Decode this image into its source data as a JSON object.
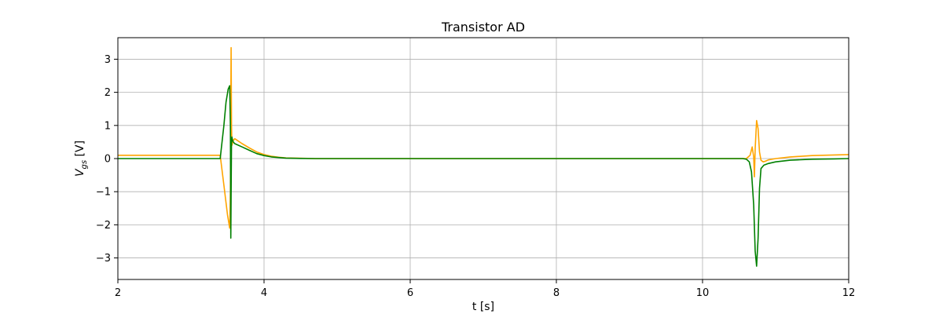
{
  "chart_data": {
    "type": "line",
    "title": "Transistor AD",
    "xlabel": "t [s]",
    "ylabel_main": "V",
    "ylabel_sub": "gs",
    "ylabel_unit": " [V]",
    "xlim": [
      2,
      12
    ],
    "ylim": [
      -3.65,
      3.65
    ],
    "grid": true,
    "x_ticks": [
      2,
      4,
      6,
      8,
      10,
      12
    ],
    "y_ticks": [
      -3,
      -2,
      -1,
      0,
      1,
      2,
      3
    ],
    "x_tick_labels": [
      "2",
      "4",
      "6",
      "8",
      "10",
      "12"
    ],
    "y_tick_labels": [
      "−3",
      "−2",
      "−1",
      "0",
      "1",
      "2",
      "3"
    ],
    "colors": {
      "series1": "#FFA500",
      "series2": "#008000",
      "grid": "#b0b0b0",
      "axis": "#000000"
    },
    "series": [
      {
        "color": "#FFA500",
        "x": [
          2.0,
          3.0,
          3.4,
          3.45,
          3.5,
          3.53,
          3.54,
          3.545,
          3.55,
          3.555,
          3.56,
          3.58,
          3.6,
          3.7,
          3.8,
          3.9,
          4.0,
          4.1,
          4.2,
          4.3,
          4.5,
          4.7,
          5.0,
          6.0,
          8.0,
          10.0,
          10.6,
          10.65,
          10.68,
          10.7,
          10.71,
          10.72,
          10.74,
          10.76,
          10.78,
          10.8,
          10.83,
          10.86,
          10.9,
          11.0,
          11.2,
          11.5,
          11.8,
          12.0
        ],
        "y": [
          0.1,
          0.1,
          0.1,
          -0.8,
          -1.7,
          -2.1,
          -1.0,
          1.5,
          3.35,
          1.0,
          0.4,
          0.55,
          0.6,
          0.45,
          0.32,
          0.2,
          0.12,
          0.07,
          0.04,
          0.02,
          0.01,
          0.0,
          0.0,
          0.0,
          0.0,
          0.0,
          0.0,
          0.1,
          0.35,
          0.05,
          -0.55,
          0.3,
          1.15,
          0.9,
          0.2,
          -0.05,
          -0.1,
          -0.08,
          -0.04,
          0.0,
          0.05,
          0.09,
          0.11,
          0.12
        ]
      },
      {
        "color": "#008000",
        "x": [
          2.0,
          3.0,
          3.4,
          3.45,
          3.48,
          3.51,
          3.53,
          3.54,
          3.545,
          3.55,
          3.555,
          3.56,
          3.57,
          3.58,
          3.6,
          3.7,
          3.8,
          3.9,
          4.0,
          4.1,
          4.2,
          4.3,
          4.5,
          4.7,
          5.0,
          6.0,
          8.0,
          10.0,
          10.55,
          10.6,
          10.64,
          10.67,
          10.7,
          10.72,
          10.74,
          10.76,
          10.78,
          10.8,
          10.84,
          10.9,
          11.0,
          11.2,
          11.5,
          11.8,
          12.0
        ],
        "y": [
          0.0,
          0.0,
          0.0,
          1.0,
          1.7,
          2.1,
          2.2,
          1.0,
          -2.4,
          -1.0,
          0.5,
          0.65,
          0.55,
          0.5,
          0.45,
          0.35,
          0.25,
          0.15,
          0.09,
          0.05,
          0.03,
          0.015,
          0.005,
          0.0,
          0.0,
          0.0,
          0.0,
          0.0,
          0.0,
          -0.02,
          -0.1,
          -0.4,
          -1.4,
          -2.8,
          -3.25,
          -2.4,
          -0.9,
          -0.3,
          -0.2,
          -0.15,
          -0.1,
          -0.05,
          -0.02,
          -0.01,
          0.0
        ]
      }
    ]
  }
}
